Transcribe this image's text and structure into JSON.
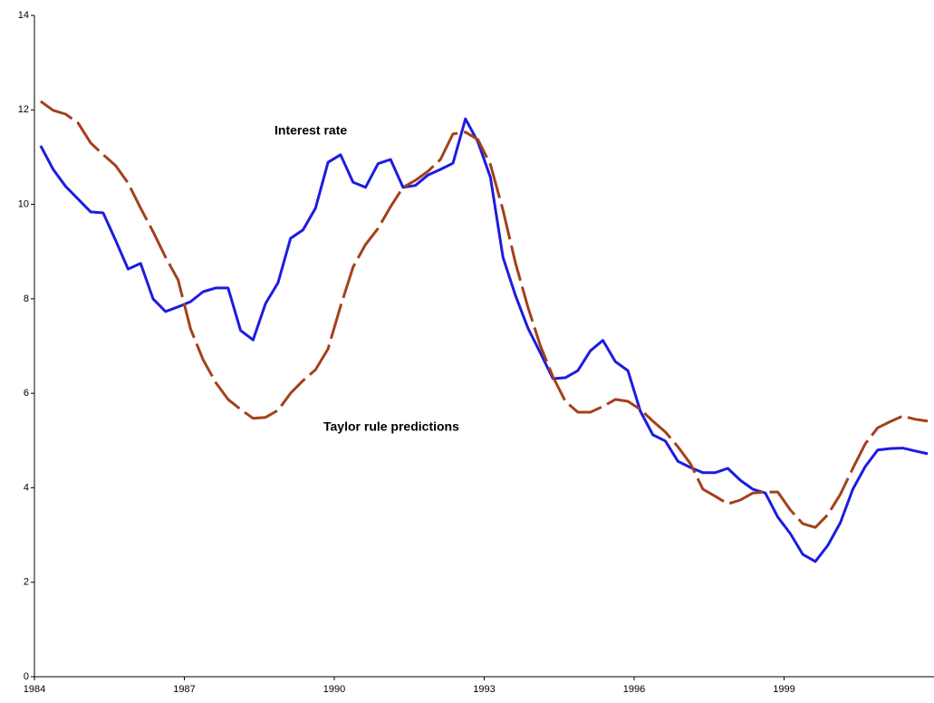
{
  "chart_data": {
    "type": "line",
    "annotations": [
      "Interest rate",
      "Taylor rule predictions"
    ],
    "x": [
      1984.125,
      1984.375,
      1984.625,
      1984.875,
      1985.125,
      1985.375,
      1985.625,
      1985.875,
      1986.125,
      1986.375,
      1986.625,
      1986.875,
      1987.125,
      1987.375,
      1987.625,
      1987.875,
      1988.125,
      1988.375,
      1988.625,
      1988.875,
      1989.125,
      1989.375,
      1989.625,
      1989.875,
      1990.125,
      1990.375,
      1990.625,
      1990.875,
      1991.125,
      1991.375,
      1991.625,
      1991.875,
      1992.125,
      1992.375,
      1992.625,
      1992.875,
      1993.125,
      1993.375,
      1993.625,
      1993.875,
      1994.125,
      1994.375,
      1994.625,
      1994.875,
      1995.125,
      1995.375,
      1995.625,
      1995.875,
      1996.125,
      1996.375,
      1996.625,
      1996.875,
      1997.125,
      1997.375,
      1997.625,
      1997.875,
      1998.125,
      1998.375,
      1998.625,
      1998.875,
      1999.125,
      1999.375,
      1999.625,
      1999.875,
      2000.125,
      2000.375,
      2000.625,
      2000.875,
      2001.125,
      2001.375,
      2001.625,
      2001.875
    ],
    "series": [
      {
        "name": "Interest rate",
        "color": "#1c1ce0",
        "dashed": false,
        "values": [
          11.24,
          10.74,
          10.38,
          10.11,
          9.84,
          9.82,
          9.24,
          8.63,
          8.75,
          8.0,
          7.73,
          7.83,
          7.94,
          8.15,
          8.23,
          8.23,
          7.33,
          7.13,
          7.9,
          8.34,
          9.28,
          9.46,
          9.92,
          10.89,
          11.05,
          10.47,
          10.36,
          10.86,
          10.95,
          10.36,
          10.4,
          10.62,
          10.74,
          10.87,
          11.81,
          11.32,
          10.57,
          8.88,
          8.07,
          7.38,
          6.85,
          6.31,
          6.33,
          6.48,
          6.9,
          7.12,
          6.67,
          6.48,
          5.62,
          5.12,
          4.99,
          4.56,
          4.43,
          4.32,
          4.32,
          4.41,
          4.16,
          3.97,
          3.89,
          3.38,
          3.03,
          2.59,
          2.44,
          2.78,
          3.26,
          3.97,
          4.45,
          4.8,
          4.83,
          4.84,
          4.78,
          4.72
        ]
      },
      {
        "name": "Taylor rule predictions",
        "color": "#a3411b",
        "dashed": true,
        "values": [
          12.18,
          11.99,
          11.91,
          11.72,
          11.3,
          11.05,
          10.82,
          10.45,
          9.92,
          9.42,
          8.88,
          8.4,
          7.36,
          6.71,
          6.23,
          5.87,
          5.66,
          5.47,
          5.49,
          5.64,
          6.0,
          6.27,
          6.5,
          6.94,
          7.84,
          8.67,
          9.15,
          9.49,
          9.95,
          10.36,
          10.51,
          10.7,
          10.95,
          11.49,
          11.53,
          11.37,
          10.84,
          9.88,
          8.76,
          7.82,
          7.0,
          6.35,
          5.83,
          5.6,
          5.6,
          5.72,
          5.87,
          5.83,
          5.66,
          5.41,
          5.18,
          4.87,
          4.51,
          3.97,
          3.82,
          3.66,
          3.74,
          3.89,
          3.91,
          3.91,
          3.53,
          3.24,
          3.16,
          3.43,
          3.86,
          4.41,
          4.93,
          5.27,
          5.4,
          5.52,
          5.45,
          5.41
        ]
      }
    ],
    "xlim": [
      1984,
      2002
    ],
    "xticks": [
      1984,
      1987,
      1990,
      1993,
      1996,
      1999
    ],
    "ylim": [
      0,
      14
    ],
    "yticks": [
      0,
      2,
      4,
      6,
      8,
      10,
      12,
      14
    ],
    "grid": false
  }
}
